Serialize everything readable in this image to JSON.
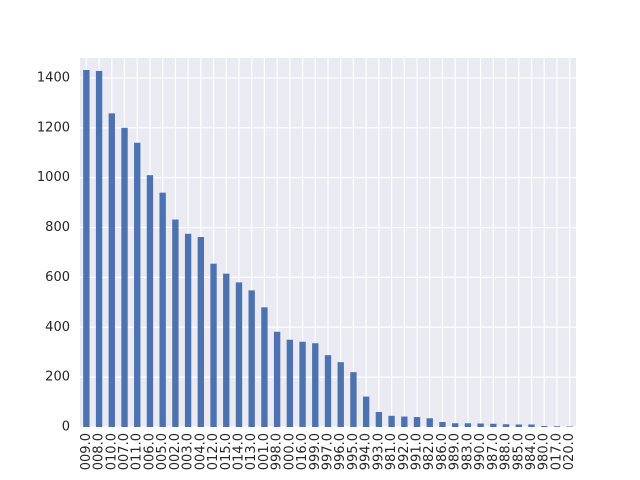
{
  "chart_data": {
    "type": "bar",
    "title": "",
    "xlabel": "",
    "ylabel": "",
    "ylim": [
      0,
      1480
    ],
    "yticks": [
      0,
      200,
      400,
      600,
      800,
      1000,
      1200,
      1400
    ],
    "grid": true,
    "legend": "none",
    "colors": {
      "bar": "#4c72b0",
      "plot_background": "#eaeaf2",
      "grid": "#ffffff",
      "text": "#262626"
    },
    "categories": [
      "009.0",
      "008.0",
      "010.0",
      "007.0",
      "011.0",
      "006.0",
      "005.0",
      "002.0",
      "003.0",
      "004.0",
      "012.0",
      "015.0",
      "014.0",
      "013.0",
      "001.0",
      "998.0",
      "000.0",
      "016.0",
      "999.0",
      "997.0",
      "996.0",
      "995.0",
      "994.0",
      "993.0",
      "981.0",
      "992.0",
      "991.0",
      "982.0",
      "986.0",
      "989.0",
      "983.0",
      "990.0",
      "987.0",
      "988.0",
      "985.0",
      "984.0",
      "980.0",
      "017.0",
      "020.0"
    ],
    "values": [
      1432,
      1428,
      1258,
      1200,
      1140,
      1010,
      940,
      832,
      775,
      762,
      655,
      615,
      580,
      548,
      480,
      382,
      350,
      342,
      336,
      288,
      260,
      220,
      122,
      60,
      45,
      42,
      40,
      35,
      20,
      15,
      15,
      14,
      13,
      11,
      10,
      10,
      4,
      3,
      2
    ]
  }
}
